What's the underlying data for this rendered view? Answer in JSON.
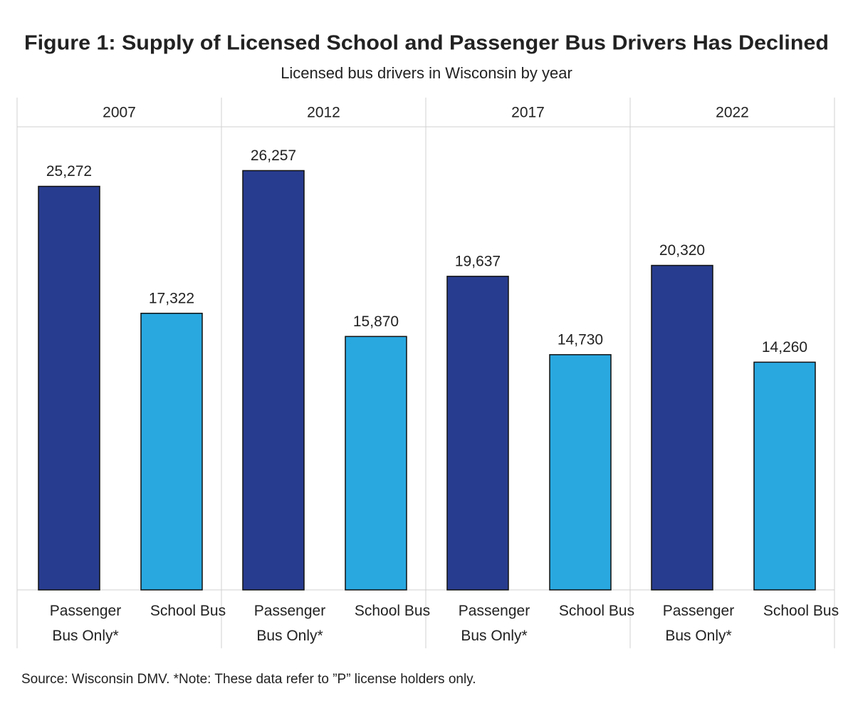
{
  "chart_data": {
    "type": "bar",
    "title": "Figure 1: Supply of Licensed School and Passenger Bus Drivers Has Declined",
    "subtitle": "Licensed bus drivers in Wisconsin by year",
    "categories": [
      "2007",
      "2012",
      "2017",
      "2022"
    ],
    "series": [
      {
        "name": "Passenger Bus Only*",
        "color": "#283c8f",
        "values": [
          25272,
          26257,
          19637,
          20320
        ],
        "value_labels": [
          "25,272",
          "26,257",
          "19,637",
          "20,320"
        ]
      },
      {
        "name": "School Bus",
        "color": "#29a8e0",
        "values": [
          17322,
          15870,
          14730,
          14260
        ],
        "value_labels": [
          "17,322",
          "15,870",
          "14,730",
          "14,260"
        ]
      }
    ],
    "ylim": [
      0,
      29000
    ],
    "source": "Source: Wisconsin DMV.  *Note: These data refer to ”P” license holders only."
  }
}
